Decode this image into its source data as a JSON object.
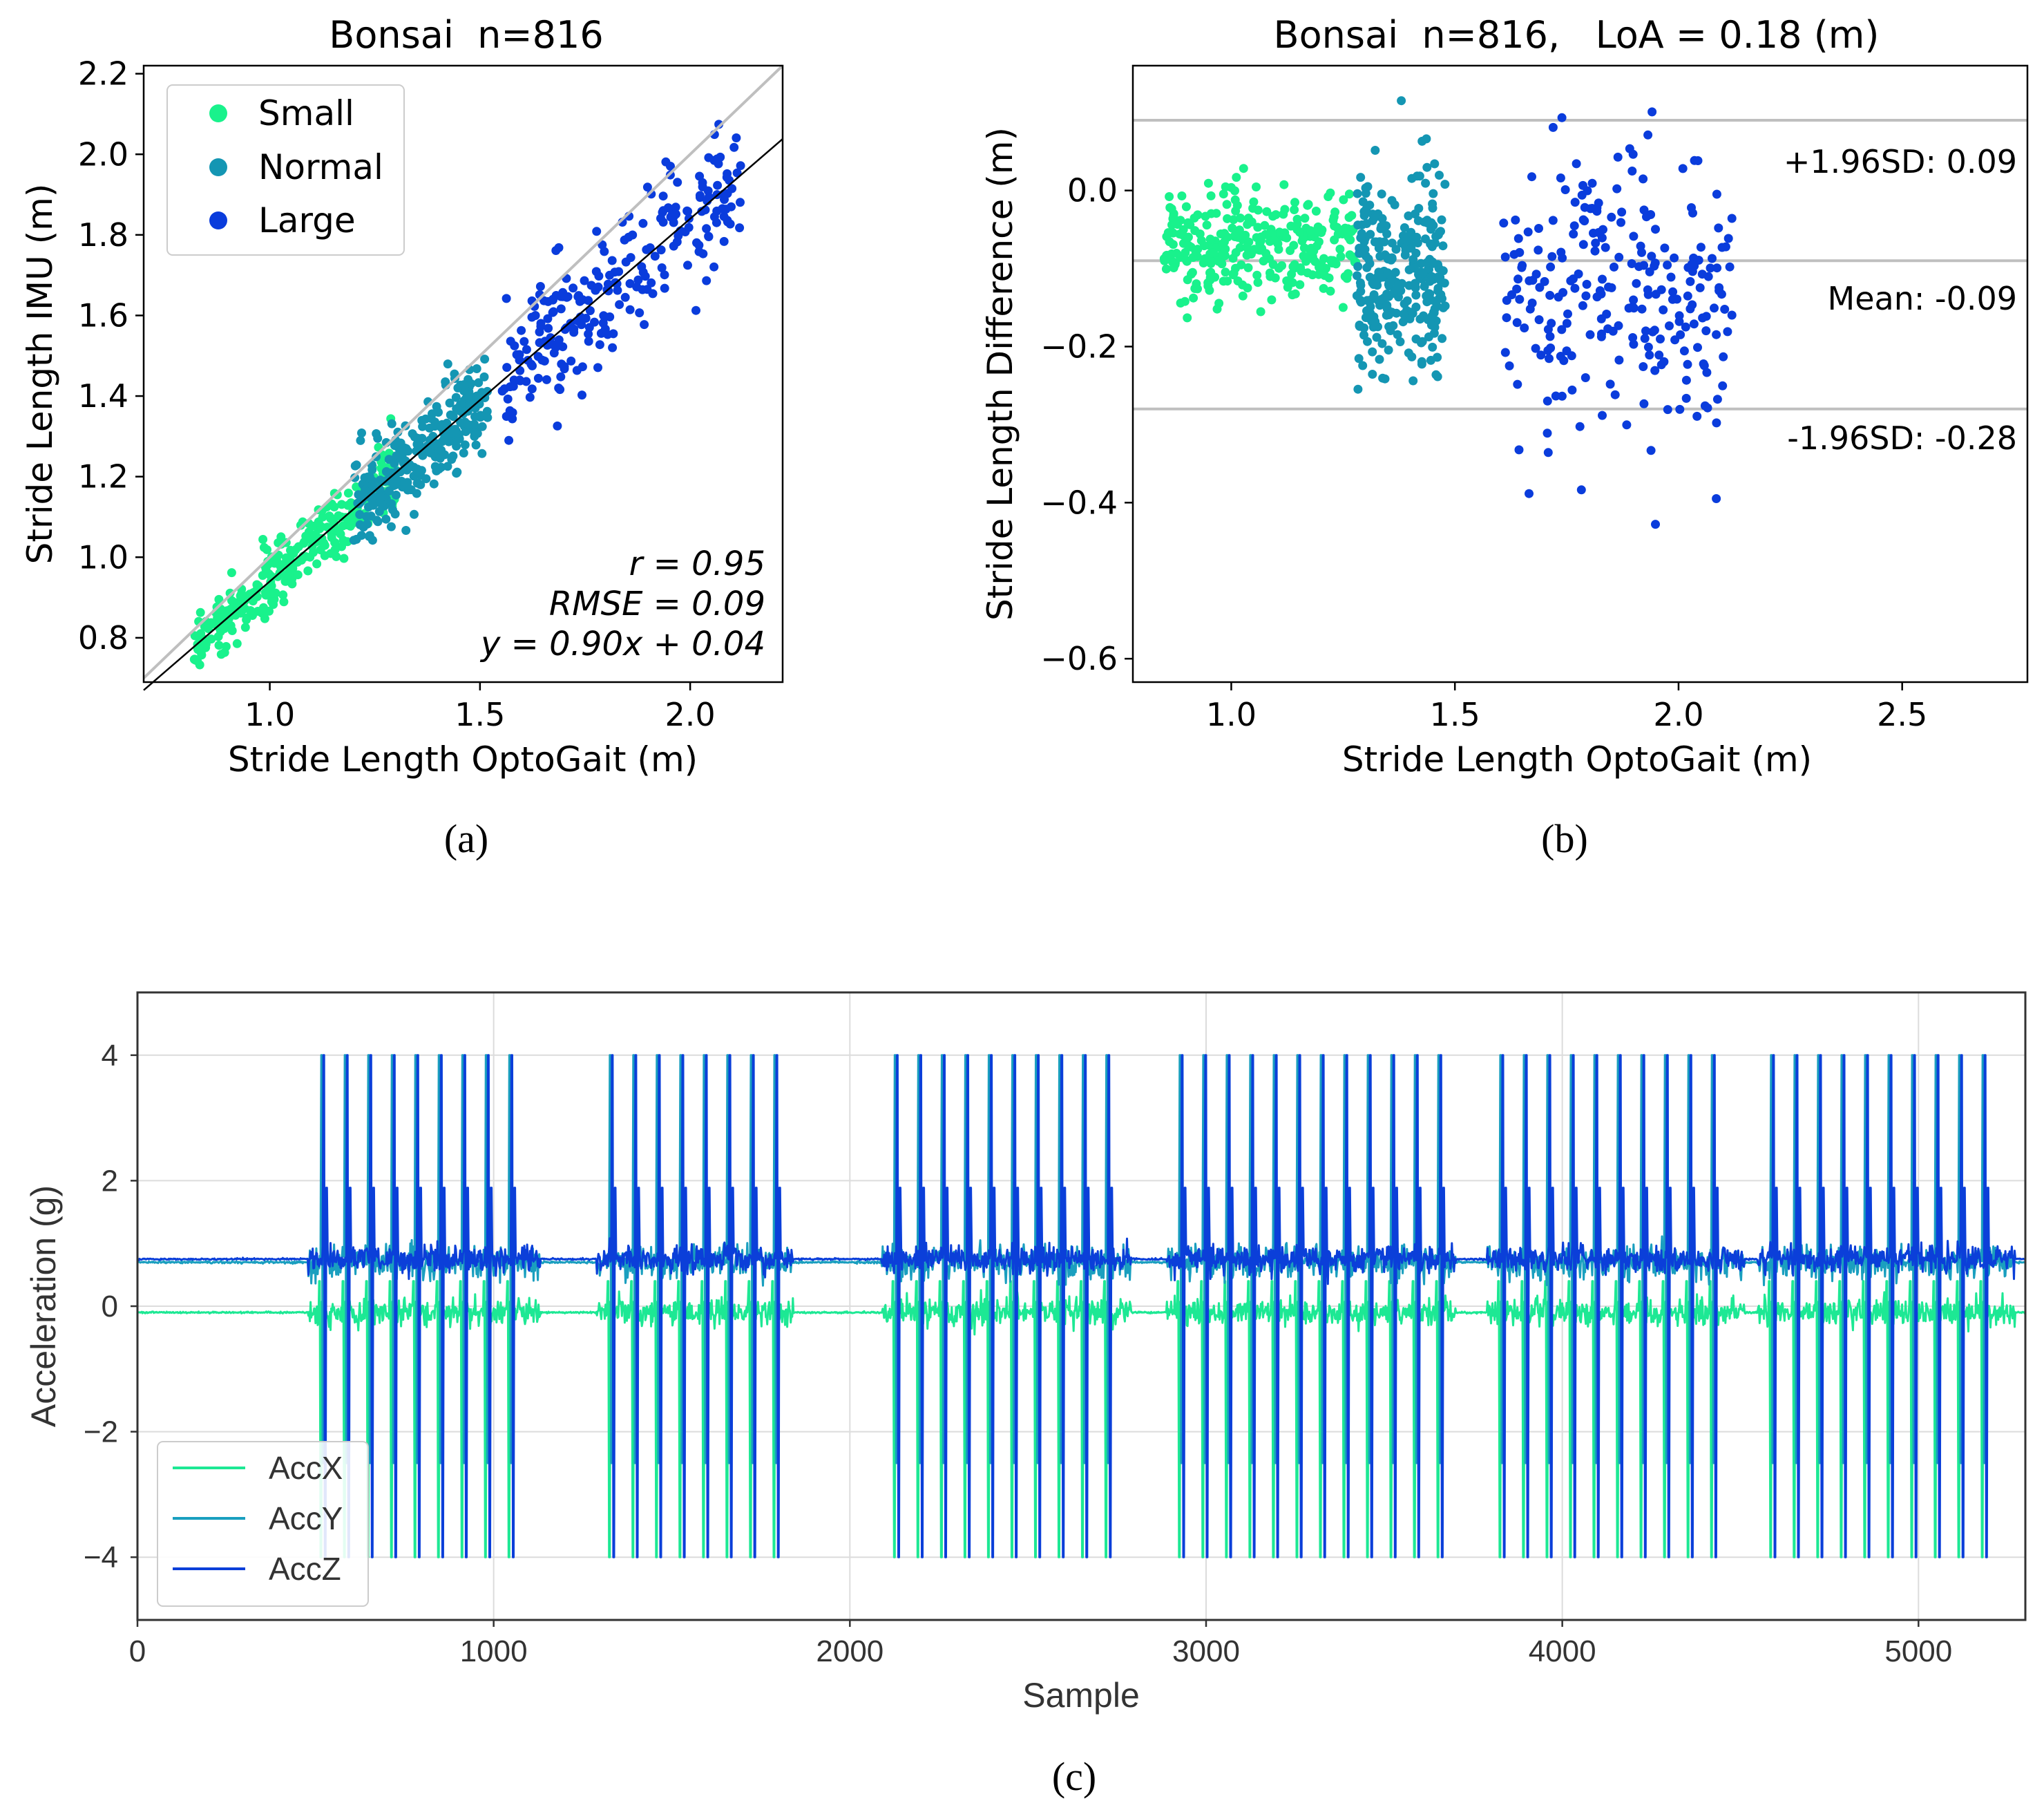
{
  "colors": {
    "small": "#19f28c",
    "normal": "#1496b3",
    "large": "#0a3cdc",
    "accx": "#1de894",
    "accy": "#1a9fbf",
    "accz": "#0b3fd9",
    "refline": "#bfbfbf",
    "fitline": "#000000",
    "grid": "#dcdcdc"
  },
  "chart_data": [
    {
      "type": "scatter",
      "id": "a",
      "panel_label": "(a)",
      "title": "Bonsai  n=816",
      "xlabel": "Stride Length OptoGait (m)",
      "ylabel": "Stride Length IMU (m)",
      "xlim": [
        0.7,
        2.22
      ],
      "ylim": [
        0.69,
        2.22
      ],
      "xticks": [
        1.0,
        1.5,
        2.0
      ],
      "xtick_labels": [
        "1.0",
        "1.5",
        "2.0"
      ],
      "yticks": [
        0.8,
        1.0,
        1.2,
        1.4,
        1.6,
        1.8,
        2.0,
        2.2
      ],
      "ytick_labels": [
        "0.8",
        "1.0",
        "1.2",
        "1.4",
        "1.6",
        "1.8",
        "2.0",
        "2.2"
      ],
      "legend": {
        "position": "top-left",
        "entries": [
          "Small",
          "Normal",
          "Large"
        ]
      },
      "series": [
        {
          "name": "Small",
          "clusters": [
            {
              "x": [
                0.82,
                1.3
              ],
              "k": 0.9,
              "b": 0.04,
              "noise": 0.07,
              "n": 300
            }
          ]
        },
        {
          "name": "Normal",
          "clusters": [
            {
              "x": [
                1.2,
                1.52
              ],
              "k": 0.9,
              "b": 0.04,
              "noise": 0.1,
              "n": 270
            }
          ]
        },
        {
          "name": "Large",
          "clusters": [
            {
              "x": [
                1.55,
                2.12
              ],
              "k": 0.9,
              "b": 0.04,
              "noise": 0.15,
              "n": 246
            }
          ]
        }
      ],
      "identity_line": {
        "from": [
          0.7,
          0.7
        ],
        "to": [
          2.22,
          2.22
        ]
      },
      "fit_line": {
        "slope": 0.9,
        "intercept": 0.04
      },
      "annotations": [
        "r = 0.95",
        "RMSE = 0.09",
        "y = 0.90x + 0.04"
      ],
      "annotation_position": "bottom-right"
    },
    {
      "type": "scatter",
      "id": "b",
      "panel_label": "(b)",
      "title": "Bonsai  n=816,   LoA = 0.18 (m)",
      "xlabel": "Stride Length OptoGait (m)",
      "ylabel": "Stride Length Difference (m)",
      "xlim": [
        0.78,
        2.78
      ],
      "ylim": [
        -0.63,
        0.16
      ],
      "xticks": [
        1.0,
        1.5,
        2.0,
        2.5
      ],
      "xtick_labels": [
        "1.0",
        "1.5",
        "2.0",
        "2.5"
      ],
      "yticks": [
        -0.6,
        -0.4,
        -0.2,
        0.0
      ],
      "ytick_labels": [
        "−0.6",
        "−0.4",
        "−0.2",
        "0.0"
      ],
      "series": [
        {
          "name": "Small",
          "clusters": [
            {
              "x": [
                0.85,
                1.28
              ],
              "mean": -0.07,
              "sd": 0.05,
              "n": 300
            }
          ]
        },
        {
          "name": "Normal",
          "clusters": [
            {
              "x": [
                1.28,
                1.48
              ],
              "mean": -0.1,
              "sd": 0.09,
              "n": 270
            }
          ]
        },
        {
          "name": "Large",
          "clusters": [
            {
              "x": [
                1.6,
                2.12
              ],
              "mean": -0.14,
              "sd": 0.13,
              "n": 246
            }
          ]
        }
      ],
      "hlines": [
        {
          "y": 0.09,
          "label": "+1.96SD: 0.09"
        },
        {
          "y": -0.09,
          "label": "Mean: -0.09"
        },
        {
          "y": -0.28,
          "label": "-1.96SD: -0.28"
        }
      ]
    },
    {
      "type": "line",
      "id": "c",
      "panel_label": "(c)",
      "xlabel": "Sample",
      "ylabel": "Acceleration (g)",
      "xlim": [
        0,
        5300
      ],
      "ylim": [
        -5,
        5
      ],
      "xticks": [
        0,
        1000,
        2000,
        3000,
        4000,
        5000
      ],
      "xtick_labels": [
        "0",
        "1000",
        "2000",
        "3000",
        "4000",
        "5000"
      ],
      "yticks": [
        -4,
        -2,
        0,
        2,
        4
      ],
      "ytick_labels": [
        "−4",
        "−2",
        "0",
        "2",
        "4"
      ],
      "grid": true,
      "legend": {
        "position": "bottom-left",
        "entries": [
          "AccX",
          "AccY",
          "AccZ"
        ]
      },
      "series": [
        {
          "name": "AccX",
          "baseline": -0.1,
          "noise": 0.08,
          "spike_min": -4,
          "spike_max": 0.4
        },
        {
          "name": "AccY",
          "baseline": 0.7,
          "noise": 0.1,
          "spike_min": -2.5,
          "spike_max": 4
        },
        {
          "name": "AccZ",
          "baseline": 0.75,
          "noise": 0.08,
          "spike_min": -4,
          "spike_max": 4
        }
      ],
      "walking_bouts": [
        [
          490,
          1100
        ],
        [
          1300,
          1810
        ],
        [
          2100,
          2760
        ],
        [
          2900,
          3670
        ],
        [
          3800,
          4480
        ],
        [
          4560,
          5240
        ]
      ],
      "stride_period": 66,
      "clip": [
        -4,
        4
      ]
    }
  ]
}
